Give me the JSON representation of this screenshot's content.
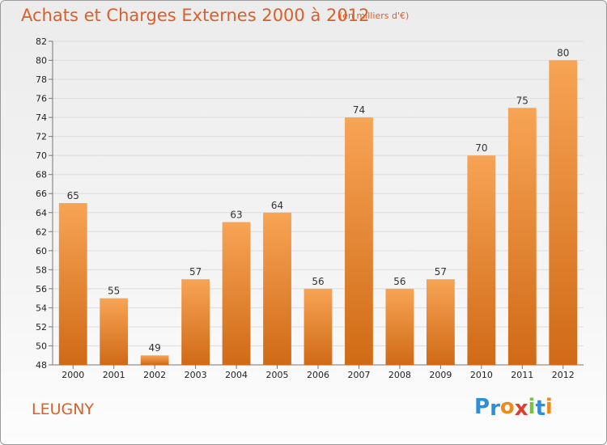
{
  "chart_data": {
    "type": "bar",
    "title": "Achats et Charges Externes 2000 à 2012",
    "subtitle": "(en milliers d'€)",
    "categories": [
      "2000",
      "2001",
      "2002",
      "2003",
      "2004",
      "2005",
      "2006",
      "2007",
      "2008",
      "2009",
      "2010",
      "2011",
      "2012"
    ],
    "values": [
      65,
      55,
      49,
      57,
      63,
      64,
      56,
      74,
      56,
      57,
      70,
      75,
      80
    ],
    "ylim": [
      48,
      82
    ],
    "yticks": [
      48,
      50,
      52,
      54,
      56,
      58,
      60,
      62,
      64,
      66,
      68,
      70,
      72,
      74,
      76,
      78,
      80,
      82
    ],
    "grid": true,
    "bar_color_top": "#f7a455",
    "bar_color_bottom": "#d06a16"
  },
  "footer": {
    "place": "LEUGNY",
    "logo_letters": [
      {
        "ch": "P",
        "color": "#2e8fd6"
      },
      {
        "ch": "r",
        "color": "#2e8fd6"
      },
      {
        "ch": "o",
        "color": "#f08a1c"
      },
      {
        "ch": "x",
        "color": "#e23c2c"
      },
      {
        "ch": "i",
        "color": "#7cc242"
      },
      {
        "ch": "t",
        "color": "#2e8fd6"
      },
      {
        "ch": "i",
        "color": "#f08a1c"
      }
    ]
  }
}
